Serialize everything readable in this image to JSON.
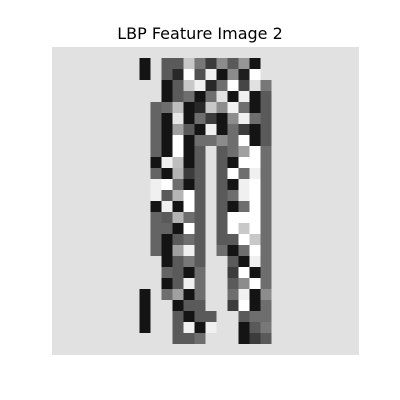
{
  "figure": {
    "title": "LBP Feature Image 2"
  },
  "image": {
    "description_type": "grayscale pixel grid",
    "rows": 28,
    "cols": 28,
    "pixels": [
      [
        225,
        225,
        225,
        225,
        225,
        225,
        225,
        225,
        225,
        225,
        225,
        225,
        225,
        225,
        225,
        225,
        225,
        225,
        225,
        225,
        225,
        225,
        225,
        225,
        225,
        225,
        225,
        225
      ],
      [
        225,
        225,
        225,
        225,
        225,
        225,
        225,
        225,
        20,
        225,
        90,
        90,
        200,
        120,
        60,
        140,
        90,
        150,
        20,
        225,
        225,
        225,
        225,
        225,
        225,
        225,
        225,
        225
      ],
      [
        225,
        225,
        225,
        225,
        225,
        225,
        225,
        225,
        20,
        225,
        90,
        40,
        255,
        80,
        240,
        20,
        140,
        30,
        255,
        225,
        225,
        225,
        225,
        225,
        225,
        225,
        225,
        225
      ],
      [
        225,
        225,
        225,
        225,
        225,
        225,
        225,
        225,
        225,
        225,
        20,
        90,
        200,
        240,
        40,
        110,
        255,
        70,
        225,
        120,
        225,
        225,
        225,
        225,
        225,
        225,
        225,
        225
      ],
      [
        225,
        225,
        225,
        225,
        225,
        225,
        225,
        225,
        225,
        225,
        20,
        90,
        110,
        20,
        110,
        225,
        20,
        240,
        20,
        90,
        225,
        225,
        225,
        225,
        225,
        225,
        225,
        225
      ],
      [
        225,
        225,
        225,
        225,
        225,
        225,
        225,
        225,
        225,
        100,
        110,
        190,
        20,
        40,
        200,
        140,
        240,
        110,
        20,
        90,
        225,
        225,
        225,
        225,
        225,
        225,
        225,
        225
      ],
      [
        225,
        225,
        225,
        225,
        225,
        225,
        225,
        225,
        225,
        100,
        20,
        230,
        20,
        110,
        60,
        20,
        140,
        240,
        110,
        90,
        225,
        225,
        225,
        225,
        225,
        225,
        225,
        225
      ],
      [
        225,
        225,
        225,
        225,
        225,
        225,
        225,
        225,
        225,
        100,
        20,
        160,
        90,
        20,
        240,
        20,
        110,
        60,
        20,
        90,
        225,
        225,
        225,
        225,
        225,
        225,
        225,
        225
      ],
      [
        225,
        225,
        225,
        225,
        225,
        225,
        225,
        225,
        225,
        100,
        20,
        255,
        20,
        110,
        110,
        140,
        110,
        255,
        20,
        90,
        225,
        225,
        225,
        225,
        225,
        225,
        225,
        225
      ],
      [
        225,
        225,
        225,
        225,
        225,
        225,
        225,
        225,
        225,
        100,
        20,
        255,
        20,
        90,
        225,
        90,
        110,
        160,
        255,
        110,
        225,
        225,
        225,
        225,
        225,
        225,
        225,
        225
      ],
      [
        225,
        225,
        225,
        225,
        225,
        225,
        225,
        225,
        225,
        20,
        240,
        190,
        20,
        90,
        225,
        90,
        20,
        255,
        255,
        110,
        225,
        225,
        225,
        225,
        225,
        225,
        225,
        225
      ],
      [
        225,
        225,
        225,
        225,
        225,
        225,
        225,
        225,
        225,
        100,
        20,
        180,
        60,
        90,
        225,
        90,
        255,
        110,
        240,
        110,
        225,
        225,
        225,
        225,
        225,
        225,
        225,
        225
      ],
      [
        225,
        225,
        225,
        225,
        225,
        225,
        225,
        225,
        225,
        240,
        255,
        110,
        20,
        90,
        225,
        90,
        20,
        240,
        255,
        110,
        225,
        225,
        225,
        225,
        225,
        225,
        225,
        225
      ],
      [
        225,
        225,
        225,
        225,
        225,
        225,
        225,
        225,
        225,
        240,
        90,
        180,
        255,
        90,
        225,
        90,
        110,
        240,
        255,
        110,
        225,
        225,
        225,
        225,
        225,
        225,
        225,
        225
      ],
      [
        225,
        225,
        225,
        225,
        225,
        225,
        225,
        225,
        225,
        20,
        240,
        20,
        255,
        90,
        225,
        90,
        20,
        110,
        255,
        110,
        225,
        225,
        225,
        225,
        225,
        225,
        225,
        225
      ],
      [
        225,
        225,
        225,
        225,
        225,
        225,
        225,
        225,
        225,
        100,
        90,
        180,
        110,
        90,
        225,
        90,
        255,
        255,
        255,
        110,
        225,
        225,
        225,
        225,
        225,
        225,
        225,
        225
      ],
      [
        225,
        225,
        225,
        225,
        225,
        225,
        225,
        225,
        225,
        100,
        100,
        20,
        255,
        90,
        225,
        90,
        255,
        200,
        255,
        110,
        225,
        225,
        225,
        225,
        225,
        225,
        225,
        225
      ],
      [
        225,
        225,
        225,
        225,
        225,
        225,
        225,
        225,
        225,
        100,
        20,
        90,
        110,
        90,
        225,
        90,
        90,
        255,
        200,
        110,
        225,
        225,
        225,
        225,
        225,
        225,
        225,
        225
      ],
      [
        225,
        225,
        225,
        225,
        225,
        225,
        225,
        225,
        225,
        100,
        20,
        160,
        240,
        90,
        225,
        110,
        20,
        110,
        255,
        110,
        225,
        225,
        225,
        225,
        225,
        225,
        225,
        225
      ],
      [
        225,
        225,
        225,
        225,
        225,
        225,
        225,
        225,
        225,
        225,
        20,
        90,
        120,
        90,
        225,
        225,
        90,
        20,
        240,
        110,
        225,
        225,
        225,
        225,
        225,
        225,
        225,
        225
      ],
      [
        225,
        225,
        225,
        225,
        225,
        225,
        225,
        225,
        225,
        225,
        100,
        90,
        20,
        110,
        225,
        225,
        60,
        255,
        20,
        110,
        225,
        225,
        225,
        225,
        225,
        225,
        225,
        225
      ],
      [
        225,
        225,
        225,
        225,
        225,
        225,
        225,
        225,
        225,
        225,
        20,
        90,
        240,
        110,
        225,
        225,
        90,
        140,
        255,
        110,
        225,
        225,
        225,
        225,
        225,
        225,
        225,
        225
      ],
      [
        225,
        225,
        225,
        225,
        225,
        225,
        225,
        225,
        20,
        225,
        110,
        160,
        20,
        110,
        225,
        225,
        110,
        240,
        20,
        140,
        225,
        225,
        225,
        225,
        225,
        225,
        225,
        225
      ],
      [
        225,
        225,
        225,
        225,
        225,
        225,
        225,
        225,
        20,
        225,
        225,
        20,
        90,
        90,
        225,
        225,
        60,
        255,
        20,
        110,
        225,
        225,
        225,
        225,
        225,
        225,
        225,
        225
      ],
      [
        225,
        225,
        225,
        225,
        225,
        225,
        225,
        225,
        20,
        225,
        225,
        90,
        20,
        90,
        90,
        225,
        225,
        90,
        110,
        110,
        225,
        225,
        225,
        225,
        225,
        225,
        225,
        225
      ],
      [
        225,
        225,
        225,
        225,
        225,
        225,
        225,
        225,
        20,
        225,
        225,
        90,
        240,
        20,
        240,
        225,
        225,
        20,
        90,
        120,
        225,
        225,
        225,
        225,
        225,
        225,
        225,
        225
      ],
      [
        225,
        225,
        225,
        225,
        225,
        225,
        225,
        225,
        225,
        225,
        225,
        90,
        90,
        110,
        225,
        225,
        225,
        20,
        60,
        90,
        225,
        225,
        225,
        225,
        225,
        225,
        225,
        225
      ],
      [
        225,
        225,
        225,
        225,
        225,
        225,
        225,
        225,
        225,
        225,
        225,
        225,
        225,
        225,
        225,
        225,
        225,
        225,
        225,
        225,
        225,
        225,
        225,
        225,
        225,
        225,
        225,
        225
      ]
    ]
  }
}
